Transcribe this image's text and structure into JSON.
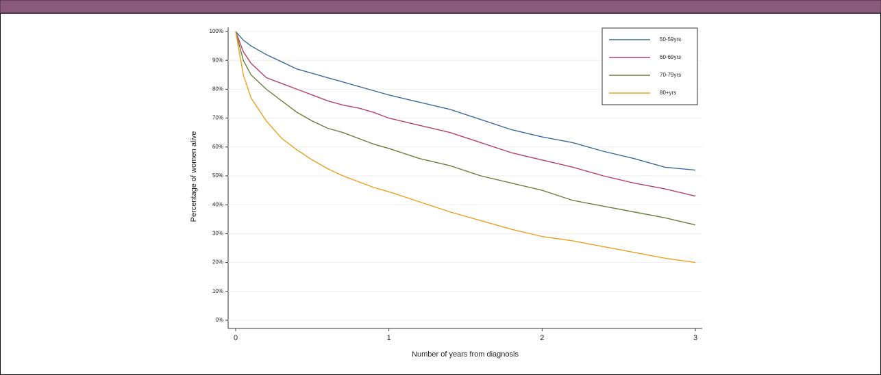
{
  "chart_data": {
    "type": "line",
    "x_label": "Number of years from diagnosis",
    "y_label": "Percentage of women alive",
    "x": [
      0,
      0.05,
      0.1,
      0.2,
      0.3,
      0.4,
      0.5,
      0.6,
      0.7,
      0.8,
      0.9,
      1.0,
      1.2,
      1.4,
      1.6,
      1.8,
      2.0,
      2.2,
      2.4,
      2.6,
      2.8,
      3.0
    ],
    "series": [
      {
        "name": "50-59yrs",
        "color": "#3a6a9a",
        "values": [
          100,
          97,
          95,
          92,
          89.5,
          87,
          85.5,
          84,
          82.5,
          81,
          79.5,
          78,
          75.5,
          73,
          69.5,
          66,
          63.5,
          61.5,
          58.5,
          56,
          53,
          52
        ]
      },
      {
        "name": "60-69yrs",
        "color": "#b04070",
        "values": [
          100,
          93,
          89,
          84,
          82,
          80,
          78,
          76,
          74.5,
          73.5,
          72,
          70,
          67.5,
          65,
          61.5,
          58,
          55.5,
          53,
          50,
          47.5,
          45.5,
          43
        ]
      },
      {
        "name": "70-79yrs",
        "color": "#6a7f3a",
        "values": [
          100,
          90,
          85,
          80,
          76,
          72,
          69,
          66.5,
          65,
          63,
          61,
          59.5,
          56,
          53.5,
          50,
          47.5,
          45,
          41.5,
          39.5,
          37.5,
          35.5,
          33
        ]
      },
      {
        "name": "80+yrs",
        "color": "#e8a020",
        "values": [
          100,
          85,
          77,
          69,
          63,
          59,
          55.5,
          52.5,
          50,
          48,
          46,
          44.5,
          41,
          37.5,
          34.5,
          31.5,
          29,
          27.5,
          25.5,
          23.5,
          21.5,
          20
        ]
      }
    ],
    "xlim": [
      0,
      3
    ],
    "xticks": [
      0,
      1,
      2,
      3
    ],
    "ylim": [
      0,
      100
    ],
    "yticks": [
      {
        "value": 0,
        "label": "0%"
      },
      {
        "value": 10,
        "label": "10%"
      },
      {
        "value": 20,
        "label": "20%"
      },
      {
        "value": 30,
        "label": "30%"
      },
      {
        "value": 40,
        "label": "40%"
      },
      {
        "value": 50,
        "label": "50%"
      },
      {
        "value": 60,
        "label": "60%"
      },
      {
        "value": 70,
        "label": "70%"
      },
      {
        "value": 80,
        "label": "80%"
      },
      {
        "value": 90,
        "label": "90%"
      },
      {
        "value": 100,
        "label": "100%"
      }
    ],
    "grid": true,
    "legend_position": "top-right"
  }
}
